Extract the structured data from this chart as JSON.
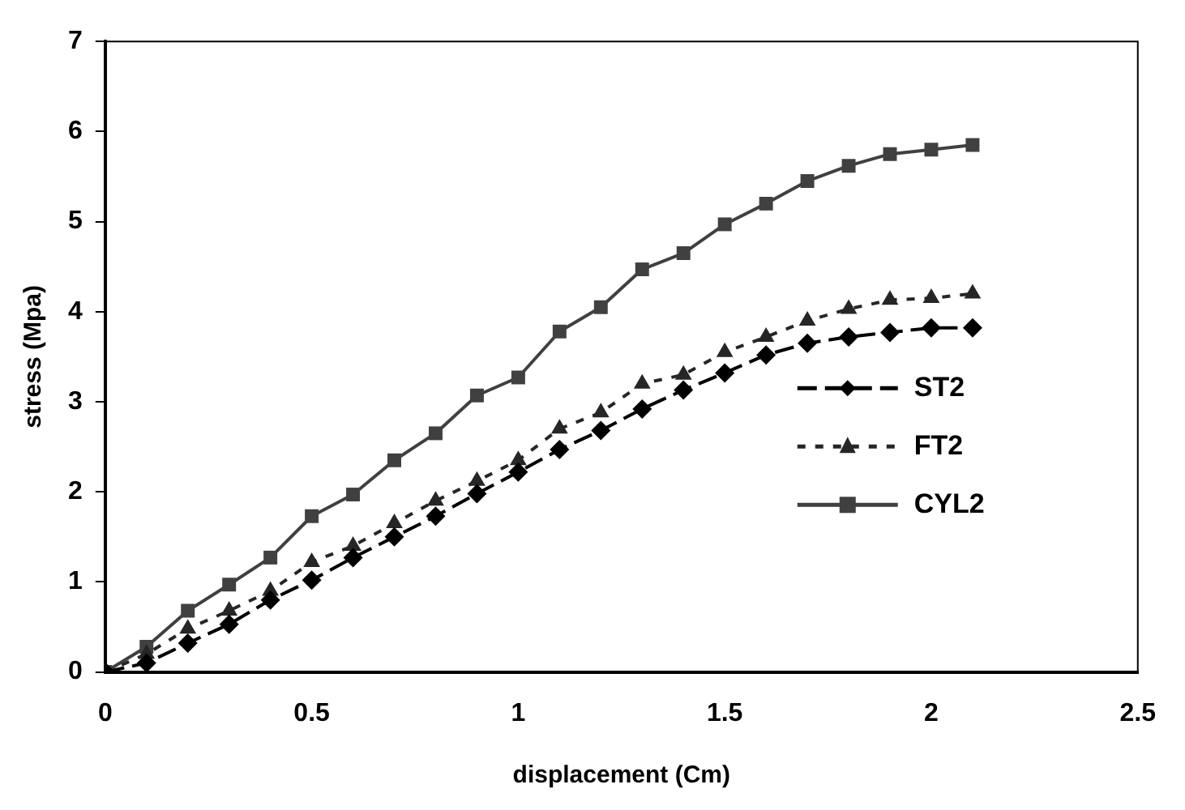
{
  "chart_data": {
    "type": "line",
    "xlabel": "displacement (Cm)",
    "ylabel": "stress (Mpa)",
    "x": [
      0,
      0.1,
      0.2,
      0.3,
      0.4,
      0.5,
      0.6,
      0.7,
      0.8,
      0.9,
      1.0,
      1.1,
      1.2,
      1.3,
      1.4,
      1.5,
      1.6,
      1.7,
      1.8,
      1.9,
      2.0,
      2.1
    ],
    "series": [
      {
        "name": "ST2",
        "color": "#000000",
        "marker": "diamond",
        "line_style": "dashed",
        "values": [
          0,
          0.1,
          0.32,
          0.53,
          0.8,
          1.02,
          1.27,
          1.5,
          1.73,
          1.98,
          2.22,
          2.47,
          2.68,
          2.92,
          3.13,
          3.32,
          3.52,
          3.65,
          3.72,
          3.77,
          3.82,
          3.82
        ]
      },
      {
        "name": "FT2",
        "color": "#262626",
        "marker": "triangle",
        "line_style": "dotted",
        "values": [
          0,
          0.2,
          0.48,
          0.68,
          0.9,
          1.22,
          1.4,
          1.65,
          1.9,
          2.12,
          2.35,
          2.7,
          2.88,
          3.2,
          3.3,
          3.55,
          3.72,
          3.9,
          4.03,
          4.13,
          4.15,
          4.2
        ]
      },
      {
        "name": "CYL2",
        "color": "#404040",
        "marker": "square",
        "line_style": "solid",
        "values": [
          0,
          0.28,
          0.68,
          0.97,
          1.27,
          1.73,
          1.97,
          2.35,
          2.65,
          3.07,
          3.27,
          3.78,
          4.05,
          4.47,
          4.65,
          4.97,
          5.2,
          5.45,
          5.62,
          5.75,
          5.8,
          5.85
        ]
      }
    ],
    "xlim": [
      0,
      2.5
    ],
    "xticks": [
      0,
      0.5,
      1,
      1.5,
      2,
      2.5
    ],
    "ylim": [
      0,
      7
    ],
    "yticks": [
      0,
      1,
      2,
      3,
      4,
      5,
      6,
      7
    ],
    "grid": false,
    "legend": "right"
  }
}
